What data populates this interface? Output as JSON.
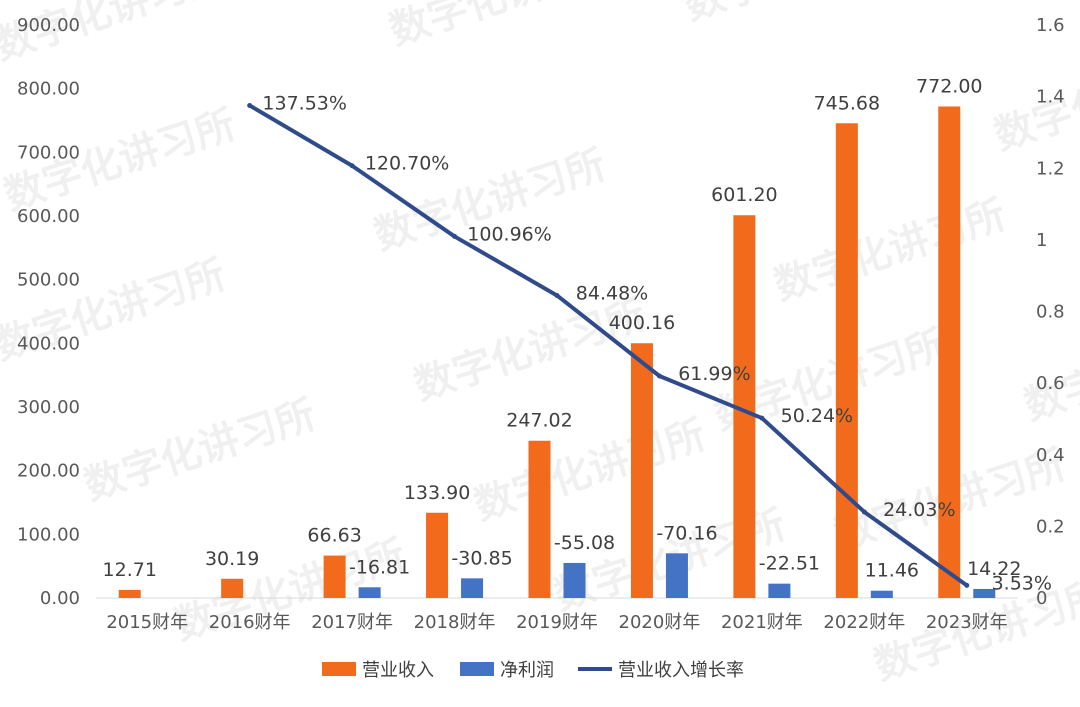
{
  "watermark_text": "数字化讲习所",
  "colors": {
    "revenue": "#F26B1D",
    "profit": "#4472C4",
    "growth": "#2F4B8C"
  },
  "chart_data": {
    "type": "bar",
    "categories": [
      "2015财年",
      "2016财年",
      "2017财年",
      "2018财年",
      "2019财年",
      "2020财年",
      "2021财年",
      "2022财年",
      "2023财年"
    ],
    "series": [
      {
        "name": "营业收入",
        "type": "bar",
        "axis": "left",
        "values": [
          12.71,
          30.19,
          66.63,
          133.9,
          247.02,
          400.16,
          601.2,
          745.68,
          772.0
        ],
        "labels": [
          "12.71",
          "30.19",
          "66.63",
          "133.90",
          "247.02",
          "400.16",
          "601.20",
          "745.68",
          "772.00"
        ]
      },
      {
        "name": "净利润",
        "type": "bar",
        "axis": "left",
        "values": [
          null,
          null,
          16.81,
          30.85,
          55.08,
          70.16,
          22.51,
          11.46,
          14.22
        ],
        "labels": [
          "",
          "",
          "-16.81",
          "-30.85",
          "-55.08",
          "-70.16",
          "-22.51",
          "11.46",
          "14.22"
        ]
      },
      {
        "name": "营业收入增长率",
        "type": "line",
        "axis": "right",
        "values": [
          null,
          1.3753,
          1.207,
          1.0096,
          0.8448,
          0.6199,
          0.5024,
          0.2403,
          0.0353
        ],
        "labels": [
          "",
          "137.53%",
          "120.70%",
          "100.96%",
          "84.48%",
          "61.99%",
          "50.24%",
          "24.03%",
          "3.53%"
        ]
      }
    ],
    "y_left": {
      "min": 0,
      "max": 900,
      "step": 100,
      "ticks": [
        "0.00",
        "100.00",
        "200.00",
        "300.00",
        "400.00",
        "500.00",
        "600.00",
        "700.00",
        "800.00",
        "900.00"
      ]
    },
    "y_right": {
      "min": 0,
      "max": 1.6,
      "step": 0.2,
      "ticks": [
        "0",
        "0.2",
        "0.4",
        "0.6",
        "0.8",
        "1",
        "1.2",
        "1.4",
        "1.6"
      ]
    },
    "legend": {
      "position": "bottom"
    },
    "grid": false
  }
}
